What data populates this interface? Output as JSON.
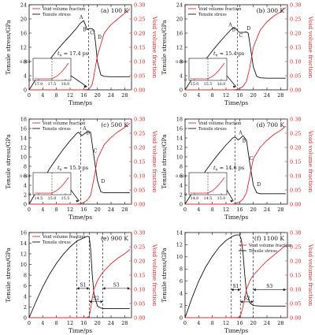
{
  "chart_data": [
    {
      "type": "line",
      "panel": "(a) 100 K",
      "xlabel": "Time/ps",
      "ylabel_left": "Tensile stress/GPa",
      "ylabel_right": "Void volume fraction",
      "xlim": [
        0,
        30
      ],
      "xticks": [
        0,
        4,
        8,
        12,
        16,
        20,
        24,
        28
      ],
      "ylim_left": [
        0,
        24
      ],
      "yticks_left": [
        0,
        4,
        8,
        12,
        16,
        20,
        24
      ],
      "ylim_right": [
        0,
        0.3
      ],
      "yticks_right": [
        0,
        0.05,
        0.1,
        0.15,
        0.2,
        0.25,
        0.3
      ],
      "legend": {
        "position": "top-left",
        "entries": [
          "Void volume fraction",
          "Tensile stress"
        ]
      },
      "vline_x": 17.4,
      "annotation": "t_n = 17.4 ps",
      "point_labels": [
        "A",
        "B",
        "C",
        "D"
      ],
      "inset": {
        "ylabel": "0.001",
        "ticks": [
          "0",
          "17.0",
          "17.5",
          "18.0"
        ]
      },
      "series": [
        {
          "name": "Tensile stress",
          "axis": "left",
          "x": [
            0,
            2,
            4,
            6,
            8,
            10,
            12,
            14,
            15,
            16,
            16.5,
            17,
            17.5,
            18,
            18.5,
            19,
            19.5,
            20,
            21,
            22,
            24,
            26,
            28,
            29.5
          ],
          "y": [
            0,
            3,
            6,
            8.5,
            11,
            13.2,
            15.3,
            17.5,
            18.8,
            19.5,
            18.3,
            17.0,
            17.2,
            17.3,
            17.2,
            16.8,
            13.0,
            8.0,
            4.2,
            3.8,
            3.7,
            3.7,
            3.7,
            3.7
          ]
        },
        {
          "name": "Void volume fraction",
          "axis": "right",
          "x": [
            0,
            8,
            14,
            16,
            17.4,
            18,
            18.5,
            19,
            20,
            22,
            24,
            26,
            28,
            29.5
          ],
          "y": [
            0,
            0,
            0,
            0,
            0.002,
            0.01,
            0.02,
            0.05,
            0.12,
            0.2,
            0.23,
            0.25,
            0.27,
            0.285
          ]
        }
      ]
    },
    {
      "type": "line",
      "panel": "(b) 300 K",
      "xlabel": "Time/ps",
      "ylabel_left": "Tensile stress/GPa",
      "ylabel_right": "Void volume fraction",
      "xlim": [
        0,
        30
      ],
      "xticks": [
        0,
        4,
        8,
        12,
        16,
        20,
        24,
        28
      ],
      "ylim_left": [
        0,
        24
      ],
      "yticks_left": [
        0,
        4,
        8,
        12,
        16,
        20,
        24
      ],
      "ylim_right": [
        0,
        0.3
      ],
      "yticks_right": [
        0,
        0.05,
        0.1,
        0.15,
        0.2,
        0.25,
        0.3
      ],
      "legend": {
        "position": "top-left",
        "entries": [
          "Void volume fraction",
          "Tensile stress"
        ]
      },
      "vline_x": 15.4,
      "annotation": "t_n = 15.4 ps",
      "point_labels": [
        "A",
        "B",
        "C",
        "D"
      ],
      "inset": {
        "ylabel": "0.001",
        "ticks": [
          "0",
          "15.0",
          "15.5",
          "16.0"
        ]
      },
      "series": [
        {
          "name": "Tensile stress",
          "axis": "left",
          "x": [
            0,
            2,
            4,
            6,
            8,
            10,
            12,
            14,
            14.5,
            15,
            15.5,
            16,
            17,
            18,
            18.5,
            19,
            20,
            21,
            22,
            24,
            26,
            28,
            29.5
          ],
          "y": [
            0,
            3,
            6,
            8.5,
            11,
            13.3,
            15.5,
            17.5,
            17.5,
            17.2,
            16.5,
            16.2,
            16.2,
            16.3,
            16.0,
            13.0,
            6.5,
            3.8,
            3.4,
            3.3,
            3.3,
            3.3,
            3.3
          ]
        },
        {
          "name": "Void volume fraction",
          "axis": "right",
          "x": [
            0,
            8,
            14,
            15.4,
            16,
            17,
            18,
            19,
            20,
            22,
            24,
            26,
            28,
            29.5
          ],
          "y": [
            0,
            0,
            0,
            0.002,
            0.005,
            0.012,
            0.03,
            0.08,
            0.15,
            0.21,
            0.24,
            0.26,
            0.275,
            0.29
          ]
        }
      ]
    },
    {
      "type": "line",
      "panel": "(c) 500 K",
      "xlabel": "Time/ps",
      "ylabel_left": "Tensile stress/GPa",
      "ylabel_right": "Void volume fraction",
      "xlim": [
        0,
        30
      ],
      "xticks": [
        0,
        4,
        8,
        12,
        16,
        20,
        24,
        28
      ],
      "ylim_left": [
        0,
        18
      ],
      "yticks_left": [
        0,
        2,
        4,
        6,
        8,
        10,
        12,
        14,
        16,
        18
      ],
      "ylim_right": [
        0,
        0.3
      ],
      "yticks_right": [
        0,
        0.05,
        0.1,
        0.15,
        0.2,
        0.25,
        0.3
      ],
      "legend": {
        "position": "top-left",
        "entries": [
          "Void volume fraction",
          "Tensile stress"
        ]
      },
      "vline_x": 15.1,
      "annotation": "t_n = 15.1 ps",
      "point_labels": [
        "A",
        "B",
        "C",
        "D"
      ],
      "inset": {
        "ylabel": "0.001",
        "ticks": [
          "0",
          "14.5",
          "15.0",
          "15.5"
        ]
      },
      "series": [
        {
          "name": "Tensile stress",
          "axis": "left",
          "x": [
            0,
            2,
            4,
            6,
            8,
            10,
            12,
            14,
            14.5,
            15,
            15.5,
            16,
            17,
            18,
            19,
            20,
            21,
            22,
            24,
            26,
            28,
            29.5
          ],
          "y": [
            0,
            2.5,
            5,
            7.5,
            9.6,
            11.6,
            13.4,
            15.0,
            15.2,
            14.8,
            14.5,
            14.8,
            15.3,
            15.2,
            10.0,
            5.0,
            2.6,
            2.4,
            2.4,
            2.4,
            2.4,
            2.4
          ]
        },
        {
          "name": "Void volume fraction",
          "axis": "right",
          "x": [
            0,
            8,
            14,
            15.1,
            16,
            17,
            18,
            19,
            20,
            22,
            24,
            26,
            28,
            29.5
          ],
          "y": [
            0,
            0,
            0,
            0.002,
            0.006,
            0.014,
            0.03,
            0.09,
            0.16,
            0.21,
            0.235,
            0.255,
            0.27,
            0.285
          ]
        }
      ]
    },
    {
      "type": "line",
      "panel": "(d) 700 K",
      "xlabel": "Time/ps",
      "ylabel_left": "Tensile stress/GPa",
      "ylabel_right": "Void volume fraction",
      "xlim": [
        0,
        30
      ],
      "xticks": [
        0,
        4,
        8,
        12,
        16,
        20,
        24,
        28
      ],
      "ylim_left": [
        0,
        18
      ],
      "yticks_left": [
        0,
        2,
        4,
        6,
        8,
        10,
        12,
        14,
        16,
        18
      ],
      "ylim_right": [
        0,
        0.3
      ],
      "yticks_right": [
        0,
        0.05,
        0.1,
        0.15,
        0.2,
        0.25,
        0.3
      ],
      "legend": {
        "position": "top-left",
        "entries": [
          "Void volume fraction",
          "Tensile stress"
        ]
      },
      "vline_x": 14.6,
      "annotation": "t_n = 14.6 ps",
      "point_labels": [
        "A",
        "B",
        "C",
        "D"
      ],
      "inset": {
        "ylabel": "0.001",
        "ticks": [
          "0",
          "14.0",
          "14.5",
          "15.0"
        ]
      },
      "series": [
        {
          "name": "Tensile stress",
          "axis": "left",
          "x": [
            0,
            2,
            4,
            6,
            8,
            10,
            12,
            14,
            14.6,
            15,
            15.5,
            16,
            17,
            18,
            19,
            20,
            21,
            22,
            24,
            26,
            28,
            29.5
          ],
          "y": [
            0,
            2.3,
            4.7,
            7.0,
            9.0,
            10.8,
            12.5,
            14.0,
            14.2,
            14.0,
            13.6,
            13.8,
            14.5,
            13.5,
            8.5,
            4.0,
            2.4,
            2.2,
            2.2,
            2.2,
            2.2,
            2.2
          ]
        },
        {
          "name": "Void volume fraction",
          "axis": "right",
          "x": [
            0,
            8,
            14,
            14.6,
            16,
            17,
            18,
            19,
            20,
            22,
            24,
            26,
            28,
            29.5
          ],
          "y": [
            0,
            0,
            0,
            0.002,
            0.008,
            0.018,
            0.04,
            0.1,
            0.16,
            0.2,
            0.225,
            0.245,
            0.26,
            0.275
          ]
        }
      ]
    },
    {
      "type": "line",
      "panel": "(e) 900 K",
      "xlabel": "Time/ps",
      "ylabel_left": "Tensile stress/GPa",
      "ylabel_right": "Void volume fraction",
      "xlim": [
        0,
        30
      ],
      "xticks": [
        0,
        4,
        8,
        12,
        16,
        20,
        24,
        28
      ],
      "ylim_left": [
        0,
        16
      ],
      "yticks_left": [
        0,
        2,
        4,
        6,
        8,
        10,
        12,
        14,
        16
      ],
      "ylim_right": [
        0,
        0.3
      ],
      "yticks_right": [
        0,
        0.05,
        0.1,
        0.15,
        0.2,
        0.25,
        0.3
      ],
      "legend": {
        "position": "top-left",
        "entries": [
          "Void volume fraction",
          "Tensile stress"
        ]
      },
      "vlines_x": [
        14.0,
        17.6,
        21.6
      ],
      "stages": [
        {
          "label": "S1",
          "from": 14.0,
          "to": 17.6,
          "y": 5.5
        },
        {
          "label": "S2",
          "from": 17.6,
          "to": 21.6,
          "y": 3.0
        },
        {
          "label": "S3",
          "from": 21.6,
          "to": 29.5,
          "y": 5.5
        }
      ],
      "series": [
        {
          "name": "Tensile stress",
          "axis": "left",
          "x": [
            0,
            2,
            4,
            6,
            8,
            10,
            12,
            14,
            16,
            17,
            17.6,
            18,
            18.5,
            19,
            20,
            21,
            22,
            24,
            26,
            28,
            29.5
          ],
          "y": [
            0,
            3.0,
            5.8,
            8.2,
            10.2,
            11.9,
            13.3,
            14.4,
            15.0,
            15.3,
            15.2,
            13.0,
            8.0,
            4.5,
            2.2,
            1.8,
            1.7,
            1.7,
            1.7,
            1.7,
            1.7
          ]
        },
        {
          "name": "Void volume fraction",
          "axis": "right",
          "x": [
            0,
            8,
            14,
            17,
            17.6,
            18,
            18.5,
            19,
            20,
            21,
            22,
            24,
            26,
            28,
            29.5
          ],
          "y": [
            0,
            0,
            0,
            0.001,
            0.005,
            0.03,
            0.07,
            0.1,
            0.13,
            0.15,
            0.165,
            0.19,
            0.21,
            0.225,
            0.24
          ]
        }
      ]
    },
    {
      "type": "line",
      "panel": "(f) 1100 K",
      "xlabel": "Time/ps",
      "ylabel_left": "Tensile stress/GPa",
      "ylabel_right": "Void volume fraction",
      "xlim": [
        0,
        30
      ],
      "xticks": [
        0,
        4,
        8,
        12,
        16,
        20,
        24,
        28
      ],
      "ylim_left": [
        0,
        14
      ],
      "yticks_left": [
        0,
        2,
        4,
        6,
        8,
        10,
        12,
        14
      ],
      "ylim_right": [
        0,
        0.3
      ],
      "yticks_right": [
        0,
        0.05,
        0.1,
        0.15,
        0.2,
        0.25,
        0.3
      ],
      "legend": {
        "position": "top-right",
        "entries": [
          "Void volume fraction",
          "Tensile stress"
        ]
      },
      "vlines_x": [
        13.5,
        16.2,
        20.0
      ],
      "stages": [
        {
          "label": "S1",
          "from": 13.5,
          "to": 16.2,
          "y": 4.6
        },
        {
          "label": "S2",
          "from": 16.2,
          "to": 20.0,
          "y": 2.6
        },
        {
          "label": "S3",
          "from": 20.0,
          "to": 29.5,
          "y": 4.6
        }
      ],
      "series": [
        {
          "name": "Tensile stress",
          "axis": "left",
          "x": [
            0,
            2,
            4,
            6,
            8,
            10,
            12,
            14,
            15,
            16,
            16.5,
            17,
            17.5,
            18,
            19,
            20,
            22,
            24,
            26,
            28,
            29.5
          ],
          "y": [
            0,
            3.2,
            6.0,
            8.3,
            10.1,
            11.6,
            12.7,
            13.4,
            13.6,
            13.6,
            12.8,
            10.5,
            7.0,
            4.2,
            2.4,
            2.0,
            1.9,
            1.9,
            1.9,
            1.9,
            1.9
          ]
        },
        {
          "name": "Void volume fraction",
          "axis": "right",
          "x": [
            0,
            8,
            13,
            15.5,
            16.2,
            16.8,
            17.5,
            18,
            19,
            20,
            22,
            24,
            26,
            28,
            29.5
          ],
          "y": [
            0,
            0,
            0,
            0.001,
            0.005,
            0.03,
            0.07,
            0.1,
            0.13,
            0.15,
            0.175,
            0.2,
            0.22,
            0.24,
            0.255
          ]
        }
      ]
    }
  ]
}
